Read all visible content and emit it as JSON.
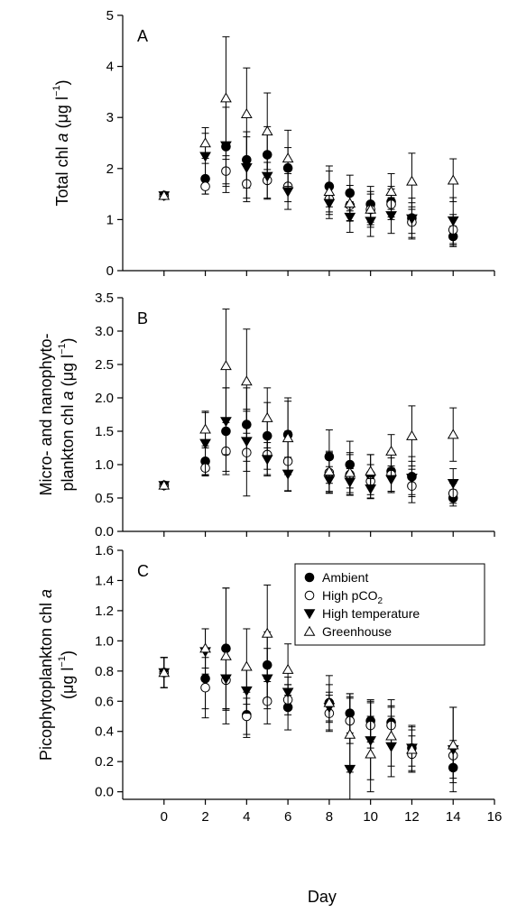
{
  "chart_data": {
    "type": "scatter",
    "x_axis": {
      "label": "Day",
      "ticks": [
        0,
        2,
        4,
        6,
        8,
        10,
        12,
        14,
        16
      ],
      "range": [
        -2,
        16
      ]
    },
    "legend": {
      "placement": "top-right of panel C",
      "entries": [
        {
          "key": "ambient",
          "label": "Ambient",
          "marker": "filled-circle"
        },
        {
          "key": "highpco2",
          "label": "High pCO",
          "label_sub": "2",
          "marker": "open-circle"
        },
        {
          "key": "hightemp",
          "label": "High temperature",
          "marker": "filled-triangle-down"
        },
        {
          "key": "greenhouse",
          "label": "Greenhouse",
          "marker": "open-triangle-up"
        }
      ]
    },
    "panels": [
      {
        "id": "A",
        "letter": "A",
        "ylabel_lines": [
          {
            "pre": "Total chl ",
            "it": "a",
            "post": " (μg l",
            "sup": "−1",
            "end": ")"
          }
        ],
        "ylim": [
          0,
          5
        ],
        "yticks": [
          0,
          1,
          2,
          3,
          4,
          5
        ],
        "tick_decimals": 0,
        "series": [
          {
            "key": "ambient",
            "x": [
              0,
              2,
              3,
              4,
              5,
              6,
              8,
              9,
              10,
              11,
              12,
              14
            ],
            "y": [
              1.47,
              1.8,
              2.43,
              2.17,
              2.27,
              2.01,
              1.65,
              1.52,
              1.3,
              1.35,
              1.03,
              0.67
            ],
            "err": [
              0.05,
              0.3,
              0.9,
              0.55,
              0.55,
              0.4,
              0.4,
              0.35,
              0.35,
              0.3,
              0.3,
              0.2
            ]
          },
          {
            "key": "highpco2",
            "x": [
              0,
              2,
              3,
              4,
              5,
              6,
              8,
              9,
              10,
              11,
              12,
              14
            ],
            "y": [
              1.47,
              1.65,
              1.95,
              1.7,
              1.77,
              1.65,
              1.4,
              1.28,
              1.2,
              1.3,
              0.95,
              0.8
            ],
            "err": [
              0.05,
              0.15,
              0.3,
              0.35,
              0.35,
              0.3,
              0.3,
              0.3,
              0.3,
              0.3,
              0.3,
              0.3
            ]
          },
          {
            "key": "hightemp",
            "x": [
              0,
              2,
              3,
              4,
              5,
              6,
              8,
              9,
              10,
              11,
              12,
              14
            ],
            "y": [
              1.47,
              2.24,
              2.45,
              2.02,
              1.85,
              1.55,
              1.32,
              1.05,
              0.97,
              1.08,
              1.02,
              0.98
            ],
            "err": [
              0.05,
              0.45,
              0.75,
              0.6,
              0.45,
              0.35,
              0.3,
              0.3,
              0.3,
              0.35,
              0.4,
              0.45
            ]
          },
          {
            "key": "greenhouse",
            "x": [
              0,
              2,
              3,
              4,
              5,
              6,
              8,
              9,
              10,
              11,
              12,
              14
            ],
            "y": [
              1.47,
              2.5,
              3.38,
              3.07,
              2.73,
              2.2,
              1.55,
              1.32,
              1.2,
              1.55,
              1.75,
              1.77
            ],
            "err": [
              0.05,
              0.3,
              1.2,
              0.9,
              0.75,
              0.55,
              0.4,
              0.35,
              0.35,
              0.35,
              0.55,
              0.42
            ]
          }
        ]
      },
      {
        "id": "B",
        "letter": "B",
        "ylabel_lines": [
          {
            "pre": "Micro- and nanophyto-"
          },
          {
            "pre": "plankton chl ",
            "it": "a",
            "post": " (μg l",
            "sup": "−1",
            "end": ")"
          }
        ],
        "ylim": [
          0,
          3.5
        ],
        "yticks": [
          0,
          0.5,
          1,
          1.5,
          2,
          2.5,
          3,
          3.5
        ],
        "tick_decimals": 1,
        "series": [
          {
            "key": "ambient",
            "x": [
              0,
              2,
              3,
              4,
              5,
              6,
              8,
              9,
              10,
              11,
              12,
              14
            ],
            "y": [
              0.69,
              1.05,
              1.5,
              1.6,
              1.43,
              1.45,
              1.12,
              1.0,
              0.85,
              0.9,
              0.82,
              0.5
            ],
            "err": [
              0.03,
              0.2,
              0.65,
              0.55,
              0.5,
              0.55,
              0.4,
              0.35,
              0.3,
              0.3,
              0.3,
              0.12
            ]
          },
          {
            "key": "highpco2",
            "x": [
              0,
              2,
              3,
              4,
              5,
              6,
              8,
              9,
              10,
              11,
              12,
              14
            ],
            "y": [
              0.69,
              0.95,
              1.2,
              1.18,
              1.15,
              1.05,
              0.88,
              0.85,
              0.75,
              0.85,
              0.68,
              0.57
            ],
            "err": [
              0.03,
              0.12,
              0.3,
              0.65,
              0.3,
              0.45,
              0.3,
              0.3,
              0.25,
              0.25,
              0.25,
              0.15
            ]
          },
          {
            "key": "hightemp",
            "x": [
              0,
              2,
              3,
              4,
              5,
              6,
              8,
              9,
              10,
              11,
              12,
              14
            ],
            "y": [
              0.69,
              1.32,
              1.65,
              1.35,
              1.08,
              0.86,
              0.77,
              0.74,
              0.64,
              0.78,
              0.8,
              0.72
            ],
            "err": [
              0.03,
              0.48,
              0.5,
              0.45,
              0.25,
              0.25,
              0.2,
              0.2,
              0.15,
              0.2,
              0.25,
              0.22
            ]
          },
          {
            "key": "greenhouse",
            "x": [
              0,
              2,
              3,
              4,
              5,
              6,
              8,
              9,
              10,
              11,
              12,
              14
            ],
            "y": [
              0.69,
              1.53,
              2.48,
              2.25,
              1.7,
              1.4,
              0.9,
              0.88,
              0.9,
              1.2,
              1.43,
              1.45
            ],
            "err": [
              0.03,
              0.25,
              0.85,
              0.78,
              0.45,
              0.55,
              0.3,
              0.3,
              0.25,
              0.25,
              0.45,
              0.4
            ]
          }
        ]
      },
      {
        "id": "C",
        "letter": "C",
        "ylabel_lines": [
          {
            "pre": "Picophytoplankton chl ",
            "it": "a"
          },
          {
            "pre": "(μg l",
            "sup": "−1",
            "end": ")"
          }
        ],
        "ylim": [
          -0.05,
          1.6
        ],
        "yticks": [
          0,
          0.2,
          0.4,
          0.6,
          0.8,
          1,
          1.2,
          1.4,
          1.6
        ],
        "tick_decimals": 1,
        "series": [
          {
            "key": "ambient",
            "x": [
              0,
              2,
              3,
              4,
              5,
              6,
              8,
              9,
              10,
              11,
              12,
              14
            ],
            "y": [
              0.79,
              0.75,
              0.95,
              0.51,
              0.84,
              0.56,
              0.59,
              0.52,
              0.47,
              0.46,
              0.29,
              0.16
            ],
            "err": [
              0.1,
              0.2,
              0.4,
              0.15,
              0.22,
              0.15,
              0.12,
              0.13,
              0.14,
              0.15,
              0.12,
              0.07
            ]
          },
          {
            "key": "highpco2",
            "x": [
              0,
              2,
              3,
              4,
              5,
              6,
              8,
              9,
              10,
              11,
              12,
              14
            ],
            "y": [
              0.79,
              0.69,
              0.74,
              0.5,
              0.6,
              0.61,
              0.52,
              0.47,
              0.44,
              0.44,
              0.25,
              0.24
            ],
            "err": [
              0.1,
              0.2,
              0.2,
              0.12,
              0.15,
              0.1,
              0.12,
              0.15,
              0.15,
              0.12,
              0.12,
              0.1
            ]
          },
          {
            "key": "hightemp",
            "x": [
              0,
              2,
              3,
              4,
              5,
              6,
              8,
              9,
              10,
              11,
              12,
              14
            ],
            "y": [
              0.79,
              0.93,
              0.75,
              0.67,
              0.75,
              0.66,
              0.56,
              0.15,
              0.34,
              0.3,
              0.29,
              0.28
            ],
            "err": [
              0.1,
              0.15,
              0.2,
              0.15,
              0.2,
              0.1,
              0.1,
              0.5,
              0.26,
              0.2,
              0.15,
              0.28
            ]
          },
          {
            "key": "greenhouse",
            "x": [
              0,
              2,
              3,
              4,
              5,
              6,
              8,
              9,
              10,
              11,
              12,
              14
            ],
            "y": [
              0.79,
              0.95,
              0.9,
              0.83,
              1.05,
              0.81,
              0.59,
              0.38,
              0.25,
              0.37,
              0.28,
              0.31
            ],
            "err": [
              0.1,
              0.13,
              0.45,
              0.25,
              0.32,
              0.17,
              0.18,
              0.25,
              0.25,
              0.2,
              0.15,
              0.25
            ]
          }
        ]
      }
    ]
  }
}
